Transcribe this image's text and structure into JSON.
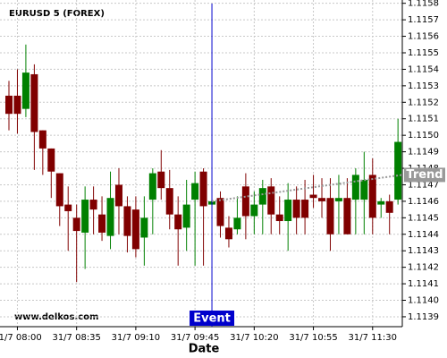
{
  "chart_data": {
    "type": "candlestick",
    "title": "EURUSD 5 (FOREX)",
    "watermark": "www.delkos.com",
    "x_label": "Date",
    "categories": [
      null,
      "31/7 08:00",
      null,
      null,
      null,
      null,
      null,
      null,
      "31/7 08:35",
      null,
      null,
      null,
      null,
      null,
      null,
      "31/7 09:10",
      null,
      null,
      null,
      null,
      null,
      null,
      "31/7 09:45",
      null,
      null,
      null,
      null,
      null,
      null,
      "31/7 10:20",
      null,
      null,
      null,
      null,
      null,
      null,
      "31/7 10:55",
      null,
      null,
      null,
      null,
      null,
      null,
      "31/7 11:30",
      null,
      null,
      null
    ],
    "open": [
      1.11524,
      1.11524,
      1.11516,
      1.11537,
      1.11503,
      1.11492,
      1.11477,
      1.11458,
      1.1145,
      1.11441,
      1.11461,
      1.11452,
      1.11439,
      1.1147,
      1.11457,
      1.11455,
      1.11438,
      1.11461,
      1.11478,
      1.11468,
      1.11452,
      1.11444,
      1.11461,
      1.11478,
      1.11458,
      1.11462,
      1.11444,
      1.11443,
      1.11469,
      1.11451,
      1.11458,
      1.11469,
      1.11452,
      1.11448,
      1.11461,
      1.11461,
      1.11464,
      1.11462,
      1.11462,
      1.1146,
      1.11462,
      1.11461,
      1.11461,
      1.11476,
      1.11458,
      1.1146,
      1.11461
    ],
    "high": [
      1.11533,
      1.1154,
      1.11555,
      1.11543,
      1.11503,
      1.11492,
      1.11477,
      1.11469,
      1.11458,
      1.11469,
      1.11469,
      1.11463,
      1.11478,
      1.1148,
      1.11463,
      1.11463,
      1.11463,
      1.1148,
      1.11491,
      1.11479,
      1.11463,
      1.11473,
      1.11478,
      1.1148,
      1.11461,
      1.11466,
      1.11451,
      1.11463,
      1.11477,
      1.11466,
      1.11473,
      1.11474,
      1.11463,
      1.11471,
      1.11469,
      1.11473,
      1.11476,
      1.11474,
      1.11474,
      1.11476,
      1.11474,
      1.1148,
      1.1149,
      1.11486,
      1.11462,
      1.11464,
      1.1151
    ],
    "low": [
      1.11503,
      1.11501,
      1.11511,
      1.11479,
      1.11476,
      1.11462,
      1.11445,
      1.1143,
      1.11411,
      1.11419,
      1.1144,
      1.11436,
      1.11431,
      1.1144,
      1.11429,
      1.11426,
      1.11421,
      1.1144,
      1.11461,
      1.11443,
      1.11421,
      1.1143,
      1.11421,
      1.11421,
      1.11457,
      1.11438,
      1.11432,
      1.1144,
      1.11437,
      1.1144,
      1.1144,
      1.1144,
      1.1144,
      1.1143,
      1.1144,
      1.1144,
      1.11456,
      1.1145,
      1.1143,
      1.1144,
      1.1144,
      1.1144,
      1.1144,
      1.1144,
      1.1145,
      1.1144,
      1.11458
    ],
    "close": [
      1.11513,
      1.11513,
      1.11538,
      1.11502,
      1.11492,
      1.11478,
      1.11457,
      1.11454,
      1.11442,
      1.11461,
      1.11455,
      1.11441,
      1.11462,
      1.11457,
      1.11439,
      1.11431,
      1.1145,
      1.11477,
      1.11468,
      1.11452,
      1.11443,
      1.11458,
      1.11471,
      1.11457,
      1.1146,
      1.11445,
      1.11437,
      1.1145,
      1.11451,
      1.11458,
      1.11468,
      1.11452,
      1.11448,
      1.11461,
      1.1145,
      1.1145,
      1.11462,
      1.1146,
      1.1144,
      1.11462,
      1.1144,
      1.11476,
      1.11473,
      1.1145,
      1.1146,
      1.11453,
      1.11496
    ],
    "up_color": "#008000",
    "down_color": "#800000",
    "ylim": [
      1.11384,
      1.11582
    ],
    "yticks": [
      1.1139,
      {
        "value": 1.114,
        "label": "1.1140"
      },
      1.1141,
      1.1142,
      1.1143,
      1.1144,
      1.1145,
      1.1146,
      1.1147,
      1.1148,
      1.1149,
      {
        "value": 1.115,
        "label": "1.1150"
      },
      1.1151,
      1.1152,
      1.1153,
      1.1154,
      1.1155,
      1.1156,
      1.1157,
      1.1158
    ],
    "grid": true,
    "event": {
      "label": "Event",
      "category_index": 24,
      "color": "#0000cc"
    },
    "trend": {
      "label": "Trend",
      "from": 1.1146,
      "to": 1.11476,
      "color": "#999999"
    }
  }
}
